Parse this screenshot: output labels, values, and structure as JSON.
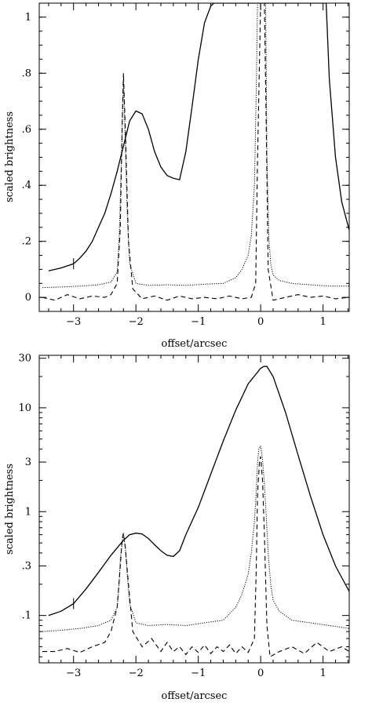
{
  "chart_data": [
    {
      "type": "line",
      "yscale": "linear",
      "xlabel": "offset/arcsec",
      "ylabel": "scaled brightness",
      "xlim": [
        -3.55,
        1.42
      ],
      "ylim": [
        -0.05,
        1.05
      ],
      "xticks": [
        -3,
        -2,
        -1,
        0,
        1
      ],
      "xtick_labels": [
        "−3",
        "−2",
        "−1",
        "0",
        "1"
      ],
      "yticks": [
        0,
        0.2,
        0.4,
        0.6,
        0.8,
        1.0
      ],
      "ytick_labels": [
        "0",
        ".2",
        ".4",
        ".6",
        ".8",
        "1"
      ],
      "series": [
        {
          "style": "solid",
          "x": [
            -3.4,
            -3.2,
            -3.0,
            -2.9,
            -2.8,
            -2.7,
            -2.6,
            -2.5,
            -2.4,
            -2.3,
            -2.2,
            -2.1,
            -2.0,
            -1.9,
            -1.8,
            -1.7,
            -1.6,
            -1.5,
            -1.4,
            -1.3,
            -1.2,
            -1.1,
            -1.0,
            -0.9,
            -0.8,
            -0.75,
            1.05,
            1.1,
            1.2,
            1.3,
            1.42
          ],
          "y": [
            0.095,
            0.105,
            0.12,
            0.14,
            0.165,
            0.2,
            0.25,
            0.3,
            0.37,
            0.45,
            0.54,
            0.63,
            0.665,
            0.655,
            0.6,
            0.52,
            0.465,
            0.435,
            0.425,
            0.42,
            0.52,
            0.68,
            0.85,
            0.98,
            1.04,
            1.05,
            1.05,
            0.78,
            0.5,
            0.34,
            0.24
          ]
        },
        {
          "style": "dotted",
          "x": [
            -3.5,
            -3.2,
            -2.9,
            -2.6,
            -2.4,
            -2.3,
            -2.27,
            -2.25,
            -2.22,
            -2.2,
            -2.17,
            -2.14,
            -2.1,
            -2.0,
            -1.8,
            -1.5,
            -1.2,
            -0.9,
            -0.6,
            -0.4,
            -0.3,
            -0.2,
            -0.15,
            -0.1,
            -0.07,
            -0.05,
            -0.02,
            0.02,
            0.05,
            0.08,
            0.1,
            0.13,
            0.16,
            0.2,
            0.3,
            0.5,
            0.8,
            1.1,
            1.42
          ],
          "y": [
            0.035,
            0.037,
            0.04,
            0.045,
            0.055,
            0.09,
            0.2,
            0.35,
            0.6,
            0.78,
            0.55,
            0.3,
            0.12,
            0.05,
            0.043,
            0.045,
            0.043,
            0.047,
            0.05,
            0.07,
            0.1,
            0.15,
            0.22,
            0.4,
            0.75,
            1.05,
            1.05,
            1.05,
            1.05,
            1.05,
            0.5,
            0.22,
            0.12,
            0.08,
            0.06,
            0.05,
            0.045,
            0.04,
            0.04
          ]
        },
        {
          "style": "dashed",
          "x": [
            -3.5,
            -3.3,
            -3.1,
            -2.9,
            -2.7,
            -2.5,
            -2.4,
            -2.3,
            -2.25,
            -2.22,
            -2.2,
            -2.17,
            -2.12,
            -2.05,
            -1.9,
            -1.7,
            -1.5,
            -1.3,
            -1.1,
            -0.9,
            -0.7,
            -0.5,
            -0.3,
            -0.15,
            -0.08,
            -0.05,
            0.0,
            0.03,
            0.06,
            0.09,
            0.12,
            0.2,
            0.4,
            0.6,
            0.8,
            1.0,
            1.2,
            1.42
          ],
          "y": [
            0.0,
            -0.01,
            0.01,
            -0.005,
            0.005,
            0.0,
            0.01,
            0.05,
            0.25,
            0.62,
            0.8,
            0.6,
            0.2,
            0.03,
            -0.005,
            0.005,
            -0.01,
            0.005,
            -0.005,
            0.0,
            -0.005,
            0.005,
            -0.005,
            0.0,
            0.05,
            0.5,
            1.05,
            1.05,
            1.05,
            0.6,
            0.1,
            -0.01,
            0.0,
            0.01,
            0.0,
            0.005,
            -0.005,
            0.0
          ]
        }
      ]
    },
    {
      "type": "line",
      "yscale": "log",
      "xlabel": "offset/arcsec",
      "ylabel": "scaled brightness",
      "xlim": [
        -3.55,
        1.42
      ],
      "ylim": [
        0.035,
        32
      ],
      "xticks": [
        -3,
        -2,
        -1,
        0,
        1
      ],
      "xtick_labels": [
        "−3",
        "−2",
        "−1",
        "0",
        "1"
      ],
      "yticks": [
        0.1,
        0.3,
        1,
        3,
        10,
        30
      ],
      "ytick_labels": [
        ".1",
        ".3",
        "1",
        "3",
        "10",
        "30"
      ],
      "series": [
        {
          "style": "solid",
          "x": [
            -3.4,
            -3.2,
            -3.0,
            -2.8,
            -2.6,
            -2.4,
            -2.2,
            -2.1,
            -2.0,
            -1.9,
            -1.8,
            -1.7,
            -1.6,
            -1.5,
            -1.4,
            -1.3,
            -1.2,
            -1.0,
            -0.8,
            -0.6,
            -0.4,
            -0.2,
            0.0,
            0.05,
            0.1,
            0.2,
            0.4,
            0.6,
            0.8,
            1.0,
            1.2,
            1.42
          ],
          "y": [
            0.1,
            0.11,
            0.13,
            0.18,
            0.26,
            0.38,
            0.53,
            0.6,
            0.62,
            0.61,
            0.55,
            0.48,
            0.42,
            0.38,
            0.37,
            0.42,
            0.6,
            1.1,
            2.3,
            4.8,
            9.5,
            17.0,
            24.0,
            25.0,
            25.0,
            20.0,
            9.0,
            3.5,
            1.4,
            0.6,
            0.3,
            0.17
          ]
        },
        {
          "style": "dotted",
          "x": [
            -3.5,
            -3.2,
            -2.9,
            -2.6,
            -2.4,
            -2.3,
            -2.27,
            -2.25,
            -2.22,
            -2.2,
            -2.17,
            -2.14,
            -2.1,
            -2.0,
            -1.8,
            -1.5,
            -1.2,
            -0.9,
            -0.6,
            -0.4,
            -0.3,
            -0.2,
            -0.15,
            -0.1,
            -0.07,
            -0.05,
            -0.03,
            0.0,
            0.03,
            0.06,
            0.09,
            0.12,
            0.16,
            0.2,
            0.3,
            0.5,
            0.8,
            1.1,
            1.42
          ],
          "y": [
            0.07,
            0.072,
            0.075,
            0.08,
            0.09,
            0.12,
            0.2,
            0.35,
            0.5,
            0.62,
            0.45,
            0.25,
            0.13,
            0.085,
            0.08,
            0.082,
            0.08,
            0.085,
            0.09,
            0.12,
            0.16,
            0.25,
            0.4,
            0.8,
            1.6,
            3.0,
            4.0,
            4.3,
            3.2,
            1.8,
            0.9,
            0.4,
            0.2,
            0.14,
            0.11,
            0.09,
            0.085,
            0.08,
            0.075
          ]
        },
        {
          "style": "dashed",
          "x": [
            -3.5,
            -3.3,
            -3.1,
            -2.9,
            -2.7,
            -2.5,
            -2.4,
            -2.3,
            -2.25,
            -2.22,
            -2.2,
            -2.17,
            -2.12,
            -2.05,
            -1.9,
            -1.75,
            -1.6,
            -1.5,
            -1.4,
            -1.3,
            -1.2,
            -1.1,
            -1.0,
            -0.9,
            -0.8,
            -0.7,
            -0.6,
            -0.5,
            -0.4,
            -0.3,
            -0.2,
            -0.1,
            -0.07,
            -0.05,
            -0.02,
            0.0,
            0.03,
            0.06,
            0.1,
            0.15,
            0.3,
            0.5,
            0.7,
            0.9,
            1.1,
            1.3,
            1.42
          ],
          "y": [
            0.045,
            0.045,
            0.048,
            0.044,
            0.05,
            0.055,
            0.07,
            0.12,
            0.3,
            0.55,
            0.62,
            0.45,
            0.2,
            0.07,
            0.05,
            0.06,
            0.045,
            0.055,
            0.045,
            0.05,
            0.042,
            0.05,
            0.044,
            0.052,
            0.043,
            0.05,
            0.045,
            0.052,
            0.043,
            0.05,
            0.044,
            0.06,
            0.3,
            1.5,
            3.0,
            3.4,
            2.0,
            0.6,
            0.08,
            0.04,
            0.045,
            0.05,
            0.043,
            0.055,
            0.045,
            0.05,
            0.045
          ]
        }
      ]
    }
  ]
}
